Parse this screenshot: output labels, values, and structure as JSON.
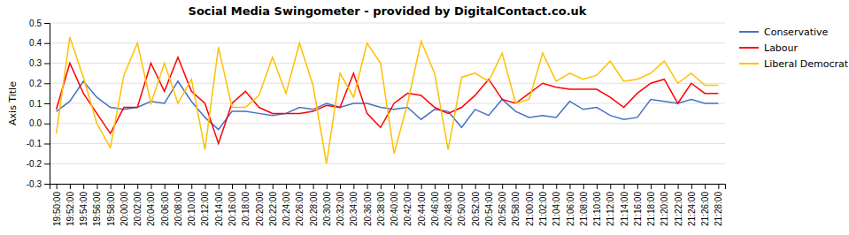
{
  "chart_data": {
    "type": "line",
    "title": "Social Media Swingometer - provided by DigitalContact.co.uk",
    "y_label": "Axis Title",
    "categories": [
      "19:50:00",
      "19:52:00",
      "19:54:00",
      "19:56:00",
      "19:58:00",
      "20:00:00",
      "20:02:00",
      "20:04:00",
      "20:06:00",
      "20:08:00",
      "20:10:00",
      "20:12:00",
      "20:14:00",
      "20:16:00",
      "20:18:00",
      "20:20:00",
      "20:22:00",
      "20:24:00",
      "20:26:00",
      "20:28:00",
      "20:30:00",
      "20:32:00",
      "20:34:00",
      "20:36:00",
      "20:38:00",
      "20:40:00",
      "20:42:00",
      "20:44:00",
      "20:46:00",
      "20:48:00",
      "20:50:00",
      "20:52:00",
      "20:54:00",
      "20:56:00",
      "20:58:00",
      "21:00:00",
      "21:02:00",
      "21:04:00",
      "21:06:00",
      "21:08:00",
      "21:10:00",
      "21:12:00",
      "21:14:00",
      "21:16:00",
      "21:18:00",
      "21:20:00",
      "21:22:00",
      "21:24:00",
      "21:26:00",
      "21:28:00"
    ],
    "series": [
      {
        "name": "Conservative",
        "color": "#4472C4",
        "values": [
          0.06,
          0.11,
          0.21,
          0.13,
          0.08,
          0.07,
          0.08,
          0.11,
          0.1,
          0.21,
          0.11,
          0.03,
          -0.03,
          0.06,
          0.06,
          0.05,
          0.04,
          0.05,
          0.08,
          0.07,
          0.1,
          0.08,
          0.1,
          0.1,
          0.08,
          0.07,
          0.08,
          0.02,
          0.07,
          0.06,
          -0.02,
          0.07,
          0.04,
          0.12,
          0.06,
          0.03,
          0.04,
          0.03,
          0.11,
          0.07,
          0.08,
          0.04,
          0.02,
          0.03,
          0.12,
          0.11,
          0.1,
          0.12,
          0.1,
          0.1
        ]
      },
      {
        "name": "Labour",
        "color": "#FF0000",
        "values": [
          0.07,
          0.3,
          0.15,
          0.05,
          -0.05,
          0.08,
          0.08,
          0.3,
          0.16,
          0.33,
          0.16,
          0.1,
          -0.1,
          0.1,
          0.16,
          0.08,
          0.05,
          0.05,
          0.05,
          0.06,
          0.09,
          0.08,
          0.25,
          0.05,
          -0.02,
          0.1,
          0.15,
          0.14,
          0.08,
          0.05,
          0.08,
          0.14,
          0.22,
          0.12,
          0.1,
          0.15,
          0.2,
          0.18,
          0.17,
          0.17,
          0.17,
          0.13,
          0.08,
          0.15,
          0.2,
          0.22,
          0.1,
          0.2,
          0.15,
          0.15
        ]
      },
      {
        "name": "Liberal Democrat",
        "color": "#FFC000",
        "values": [
          -0.05,
          0.43,
          0.23,
          0.0,
          -0.12,
          0.24,
          0.4,
          0.1,
          0.3,
          0.1,
          0.22,
          -0.13,
          0.38,
          0.08,
          0.08,
          0.14,
          0.33,
          0.15,
          0.4,
          0.19,
          -0.2,
          0.25,
          0.13,
          0.4,
          0.3,
          -0.15,
          0.1,
          0.41,
          0.25,
          -0.13,
          0.23,
          0.25,
          0.21,
          0.35,
          0.1,
          0.12,
          0.35,
          0.21,
          0.25,
          0.22,
          0.24,
          0.31,
          0.21,
          0.22,
          0.25,
          0.31,
          0.2,
          0.25,
          0.19,
          0.19
        ]
      }
    ],
    "ylim": [
      -0.3,
      0.5
    ],
    "yticks": [
      -0.3,
      -0.2,
      -0.1,
      {
        "value": 0,
        "label": "0.0"
      },
      0.1,
      0.2,
      0.3,
      0.4,
      0.5
    ],
    "grid": true,
    "legend": "right"
  }
}
